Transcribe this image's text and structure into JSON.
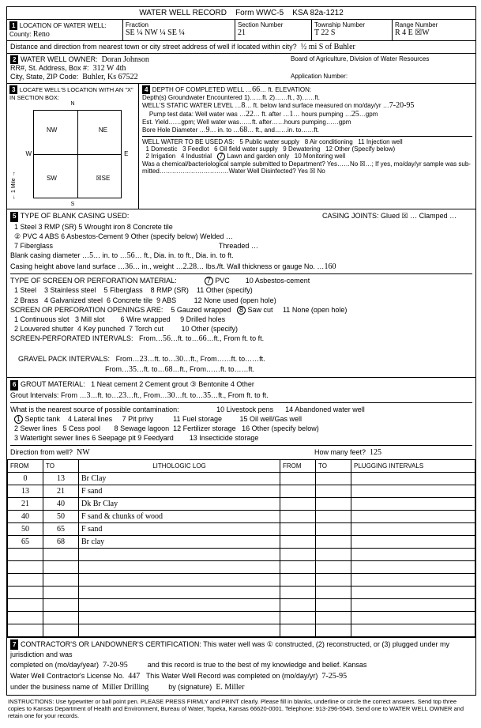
{
  "header": {
    "title": "WATER WELL RECORD",
    "form_no": "Form WWC-5",
    "ksa": "KSA 82a-1212"
  },
  "sec1": {
    "label": "LOCATION OF WATER WELL:",
    "county_label": "County:",
    "county": "Reno",
    "fraction_label": "Fraction",
    "fraction": "SE ¼   NW ¼   SE ¼",
    "section_label": "Section Number",
    "section": "21",
    "township_label": "Township Number",
    "township": "T  22   S",
    "range_label": "Range Number",
    "range": "R   4   E ☒W",
    "dist_label": "Distance and direction from nearest town or city street address of well if located within city?",
    "dist": "½ mi  S  of  Buhler"
  },
  "sec2": {
    "label": "WATER WELL OWNER:",
    "addr_label": "RR#, St. Address, Box #",
    "owner": "Doran  Johnson",
    "addr": "312  W  4th",
    "city_label": "City, State, ZIP Code",
    "city": "Buhler, Ks  67522",
    "board": "Board of Agriculture, Division of Water Resources",
    "app_label": "Application Number:"
  },
  "sec3": {
    "label": "LOCATE WELL'S LOCATION WITH AN \"X\" IN SECTION BOX:"
  },
  "sec4": {
    "label": "DEPTH OF COMPLETED WELL",
    "depth": "66",
    "elev": "ft. ELEVATION:",
    "gw_label": "Depth(s) Groundwater Encountered",
    "gw1": "1)",
    "gw2": "ft. 2)",
    "gw3": "ft., 3)",
    "gw_end": "ft.",
    "swl_label": "WELL'S STATIC WATER LEVEL",
    "swl": "8",
    "swl_after": "ft. below land surface measured on mo/day/yr",
    "swl_date": "7-20-95",
    "pump_label": "Pump test data: Well water was",
    "pump_v": "22",
    "pump_after": "ft. after",
    "pump_hrs": "1",
    "pump_end": "hours pumping",
    "pump_gpm": "25",
    "gpm_lbl": "gpm",
    "est_label": "Est. Yield",
    "est_mid": "gpm; Well water was",
    "est_after": "ft. after",
    "est_end": "hours pumping",
    "est_gpm": "gpm",
    "bore_label": "Bore Hole Diameter",
    "bore_v": "9",
    "bore_mid": "in. to",
    "bore_to": "68",
    "bore_after": "ft., and",
    "bore_end": "in. to",
    "bore_ft": "ft.",
    "use_label": "WELL WATER TO BE USED AS:",
    "use_opts": "1 Domestic   3 Feedlot   5 Public water supply   8 Air conditioning   11 Injection well\n2 Irrigation   4 Industrial   6 Oil field water supply   9 Dewatering   12 Other (Specify below)",
    "use7": "⑦ Lawn and garden only   10 Monitoring well",
    "chem_label": "Was a chemical/bacteriological sample submitted to Department? Yes",
    "chem_no": "No ☒",
    "chem_end": "; If yes, mo/day/yr sample was sub-",
    "mitted": "mitted",
    "disinf": "Water Well Disinfected? Yes ☒   No"
  },
  "sec5": {
    "label": "TYPE OF BLANK CASING USED:",
    "opts1": "1 Steel   3 RMP (SR)   5 Wrought iron   8 Concrete tile",
    "joints": "CASING JOINTS: Glued ☒ … Clamped …",
    "opts2": "② PVC   4 ABS   6 Asbestos-Cement   9 Other (specify below)   Welded …",
    "opts3": "7 Fiberglass                                                                                    Threaded …",
    "bc_label": "Blank casing diameter",
    "bc_d": "5",
    "bc_mid": "in. to",
    "bc_to": "56",
    "bc_after": "ft., Dia.        in. to        ft., Dia.        in. to        ft.",
    "ch_label": "Casing height above land surface",
    "ch": "36",
    "ch_mid": "in., weight",
    "ch_w": "2.28",
    "ch_after": "lbs./ft. Wall thickness or gauge No.",
    "ch_g": "160",
    "screen_label": "TYPE OF SCREEN OR PERFORATION MATERIAL:",
    "screen_opts": "1 Steel   3 Stainless steel   5 Fiberglass   ① PVC   10 Asbestos-cement\n2 Brass   4 Galvanized steel   6 Concrete tile   8 RMP (SR)   11 Other (specify)\n                                                              9 ABS   12 None used (open hole)",
    "open_label": "SCREEN OR PERFORATION OPENINGS ARE:",
    "open_opts": "1 Continuous slot   3 Mill slot   5 Gauzed wrapped   ⑧ Saw cut   11 None (open hole)\n2 Louvered shutter   4 Key punched   6 Wire wrapped   9 Drilled holes\n                                                 7 Torch cut   10 Other (specify)",
    "sp_label": "SCREEN-PERFORATED INTERVALS:",
    "sp_from": "From",
    "sp_v1": "56",
    "sp_to": "ft. to",
    "sp_v2": "66",
    "sp_end": "ft., From        ft. to        ft.",
    "gp_label": "GRAVEL PACK INTERVALS:",
    "gp_r1_f": "23",
    "gp_r1_t": "30",
    "gp_r2_f": "35",
    "gp_r2_t": "68"
  },
  "sec6": {
    "label": "GROUT MATERIAL:",
    "opts": "1 Neat cement   2 Cement grout   ③ Bentonite   4 Other",
    "gi_label": "Grout Intervals: From",
    "gi_f1": "3",
    "gi_t1": "23",
    "gi_f2": "30",
    "gi_t2": "35",
    "gi_mid": "ft. to",
    "gi_end": "ft., From        ft. to        ft.",
    "nearest": "What is the nearest source of possible contamination:",
    "contam_opts": "① Septic tank   4 Lateral lines   7 Pit privy   10 Livestock pens   14 Abandoned water well\n2 Sewer lines   5 Cess pool   8 Sewage lagoon   11 Fuel storage   15 Oil well/Gas well\n3 Watertight sewer lines  6 Seepage pit   9 Feedyard   12 Fertilizer storage   16 Other (specify below)\n                                                        13 Insecticide storage",
    "dir_label": "Direction from well?",
    "dir": "NW",
    "feet_label": "How many feet?",
    "feet": "125"
  },
  "log": {
    "headers": [
      "FROM",
      "TO",
      "LITHOLOGIC LOG",
      "FROM",
      "TO",
      "PLUGGING INTERVALS"
    ],
    "rows": [
      [
        "0",
        "13",
        "Br Clay",
        "",
        "",
        ""
      ],
      [
        "13",
        "21",
        "F sand",
        "",
        "",
        ""
      ],
      [
        "21",
        "40",
        "Dk Br Clay",
        "",
        "",
        ""
      ],
      [
        "40",
        "50",
        "F sand & chunks of wood",
        "",
        "",
        ""
      ],
      [
        "50",
        "65",
        "F sand",
        "",
        "",
        ""
      ],
      [
        "65",
        "68",
        "Br clay",
        "",
        "",
        ""
      ],
      [
        "",
        "",
        "",
        "",
        "",
        ""
      ],
      [
        "",
        "",
        "",
        "",
        "",
        ""
      ],
      [
        "",
        "",
        "",
        "",
        "",
        ""
      ],
      [
        "",
        "",
        "",
        "",
        "",
        ""
      ],
      [
        "",
        "",
        "",
        "",
        "",
        ""
      ],
      [
        "",
        "",
        "",
        "",
        "",
        ""
      ],
      [
        "",
        "",
        "",
        "",
        "",
        ""
      ]
    ]
  },
  "sec7": {
    "label": "CONTRACTOR'S OR LANDOWNER'S CERTIFICATION:",
    "text1": "This water well was ① constructed, (2) reconstructed, or (3) plugged under my jurisdiction and was",
    "comp_label": "completed on (mo/day/year)",
    "comp_date": "7-20-95",
    "text2": "and this record is true to the best of my knowledge and belief. Kansas",
    "lic_label": "Water Well Contractor's License No.",
    "lic": "447",
    "text3": "This Water Well Record was completed on (mo/day/yr)",
    "rec_date": "7-25-95",
    "bus_label": "under the business name of",
    "bus": "Miller Drilling",
    "sig_label": "by (signature)",
    "sig": "E. Miller"
  },
  "footer": "INSTRUCTIONS: Use typewriter or ball point pen. PLEASE PRESS FIRMLY and PRINT clearly. Please fill in blanks, underline or circle the correct answers. Send top three copies to Kansas Department of Health and Environment, Bureau of Water, Topeka, Kansas 66620-0001. Telephone: 913-296-5545. Send one to WATER WELL OWNER and retain one for your records."
}
